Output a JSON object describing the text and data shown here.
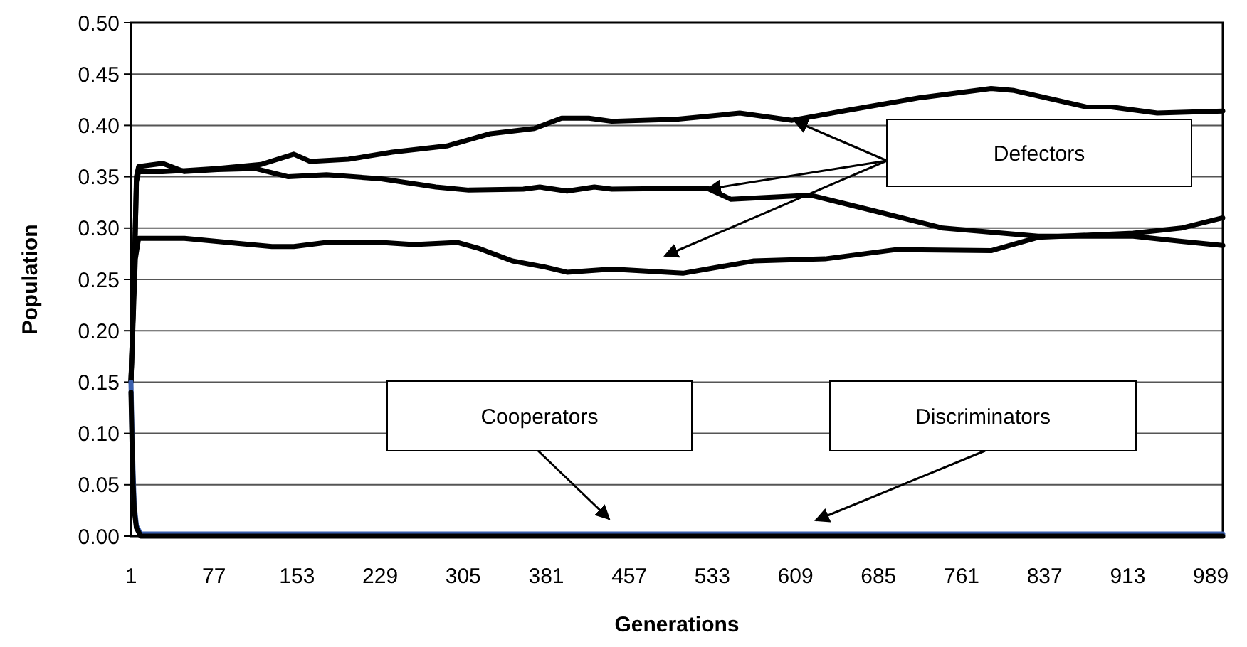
{
  "chart_data": {
    "type": "line",
    "xlabel": "Generations",
    "ylabel": "Population",
    "xlim": [
      1,
      1000
    ],
    "xticks": [
      1,
      77,
      153,
      229,
      305,
      381,
      457,
      533,
      609,
      685,
      761,
      837,
      913,
      989
    ],
    "ylim": [
      0,
      0.5
    ],
    "yticks": [
      {
        "value": 0,
        "label": "0.00"
      },
      {
        "value": 0.05,
        "label": "0.05"
      },
      {
        "value": 0.1,
        "label": "0.10"
      },
      {
        "value": 0.15,
        "label": "0.15"
      },
      {
        "value": 0.2,
        "label": "0.20"
      },
      {
        "value": 0.25,
        "label": "0.25"
      },
      {
        "value": 0.3,
        "label": "0.30"
      },
      {
        "value": 0.35,
        "label": "0.35"
      },
      {
        "value": 0.4,
        "label": "0.40"
      },
      {
        "value": 0.45,
        "label": "0.45"
      },
      {
        "value": 0.5,
        "label": "0.50"
      }
    ],
    "grid": "y",
    "line_style": "solid",
    "annotations": [
      "Defectors",
      "Cooperators",
      "Discriminators"
    ],
    "series": [
      {
        "color": "#000000",
        "x": [
          1,
          3,
          5,
          6,
          8,
          30,
          50,
          80,
          120,
          150,
          165,
          200,
          240,
          290,
          330,
          370,
          395,
          420,
          441,
          500,
          558,
          606,
          658,
          723,
          788,
          809,
          875,
          898,
          940,
          1000
        ],
        "values": [
          0.15,
          0.22,
          0.3,
          0.345,
          0.355,
          0.355,
          0.356,
          0.358,
          0.362,
          0.372,
          0.365,
          0.367,
          0.374,
          0.38,
          0.392,
          0.397,
          0.407,
          0.407,
          0.404,
          0.406,
          0.412,
          0.405,
          0.415,
          0.427,
          0.436,
          0.434,
          0.418,
          0.418,
          0.412,
          0.414
        ]
      },
      {
        "color": "#000000",
        "x": [
          1,
          3,
          5,
          6,
          8,
          30,
          50,
          80,
          115,
          145,
          180,
          230,
          280,
          310,
          360,
          375,
          400,
          425,
          441,
          528,
          550,
          623,
          680,
          744,
          831,
          918,
          962,
          1000
        ],
        "values": [
          0.15,
          0.22,
          0.3,
          0.35,
          0.36,
          0.363,
          0.355,
          0.357,
          0.358,
          0.35,
          0.352,
          0.348,
          0.34,
          0.337,
          0.338,
          0.34,
          0.336,
          0.34,
          0.338,
          0.339,
          0.328,
          0.332,
          0.317,
          0.3,
          0.292,
          0.292,
          0.287,
          0.283
        ]
      },
      {
        "color": "#000000",
        "x": [
          1,
          3,
          5,
          8,
          50,
          100,
          130,
          150,
          180,
          230,
          260,
          300,
          320,
          350,
          380,
          400,
          441,
          506,
          571,
          636,
          701,
          788,
          831,
          918,
          962,
          1000
        ],
        "values": [
          0.15,
          0.21,
          0.27,
          0.29,
          0.29,
          0.285,
          0.282,
          0.282,
          0.286,
          0.286,
          0.284,
          0.286,
          0.28,
          0.268,
          0.262,
          0.257,
          0.26,
          0.256,
          0.268,
          0.27,
          0.279,
          0.278,
          0.291,
          0.295,
          0.3,
          0.31
        ]
      },
      {
        "color": "#3a5fad",
        "x": [
          1,
          2,
          3,
          4,
          6,
          10,
          1000
        ],
        "values": [
          0.15,
          0.1,
          0.06,
          0.03,
          0.01,
          0.002,
          0.002
        ]
      },
      {
        "color": "#000000",
        "x": [
          1,
          2,
          3,
          4,
          6,
          10,
          1000
        ],
        "values": [
          0.14,
          0.09,
          0.05,
          0.025,
          0.008,
          0,
          0
        ]
      }
    ]
  }
}
